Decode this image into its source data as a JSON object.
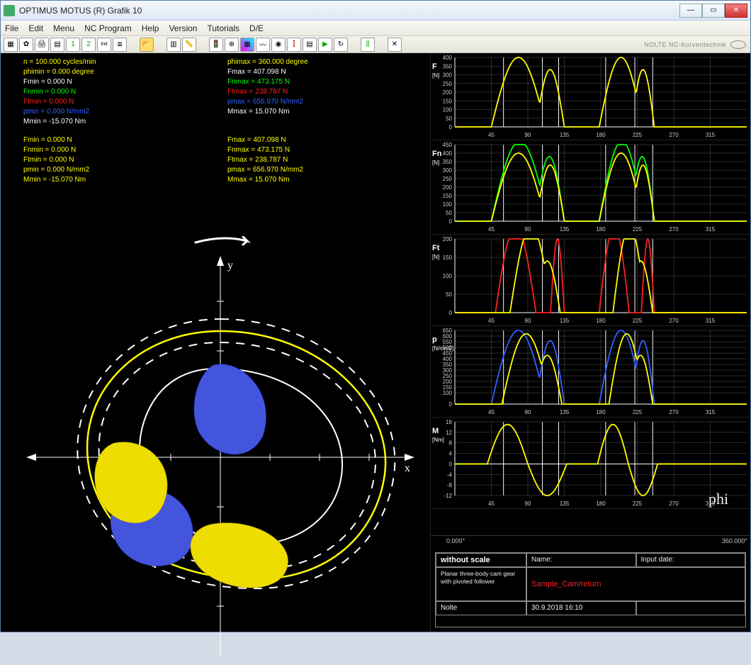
{
  "window": {
    "title": "OPTIMUS MOTUS (R) Grafik 10"
  },
  "menu": [
    "File",
    "Edit",
    "Menu",
    "NC Program",
    "Help",
    "Version",
    "Tutorials",
    "D/E"
  ],
  "brand": "NOLTE NC-Kurventechnik",
  "params_left": [
    {
      "text": "n = 100.000 cycles/min",
      "color": "c-yellow"
    },
    {
      "text": "phimin = 0.000 degree",
      "color": "c-yellow"
    },
    {
      "text": "Fmin = 0.000 N",
      "color": "c-white"
    },
    {
      "text": "Fnmin = 0.000 N",
      "color": "c-green"
    },
    {
      "text": "Ftmin = 0.000 N",
      "color": "c-red"
    },
    {
      "text": "pmin = 0.000 N/mm2",
      "color": "c-blue"
    },
    {
      "text": "Mmin = -15.070 Nm",
      "color": "c-white"
    }
  ],
  "params_left2": [
    {
      "text": "Fmin = 0.000 N",
      "color": "c-yellow"
    },
    {
      "text": "Fnmin = 0.000 N",
      "color": "c-yellow"
    },
    {
      "text": "Ftmin = 0.000 N",
      "color": "c-yellow"
    },
    {
      "text": "pmin = 0.000 N/mm2",
      "color": "c-yellow"
    },
    {
      "text": "Mmin = -15.070 Nm",
      "color": "c-yellow"
    }
  ],
  "params_right": [
    {
      "text": "",
      "color": "c-white"
    },
    {
      "text": "phimax = 360.000 degree",
      "color": "c-yellow"
    },
    {
      "text": "Fmax = 407.098 N",
      "color": "c-white"
    },
    {
      "text": "Fnmax = 473.175 N",
      "color": "c-green"
    },
    {
      "text": "Ftmax = 238.787 N",
      "color": "c-red"
    },
    {
      "text": "pmax = 656.970 N/mm2",
      "color": "c-blue"
    },
    {
      "text": "Mmax = 15.070 Nm",
      "color": "c-white"
    }
  ],
  "params_right2": [
    {
      "text": "Fmax = 407.098 N",
      "color": "c-yellow"
    },
    {
      "text": "Fnmax = 473.175 N",
      "color": "c-yellow"
    },
    {
      "text": "Ftmax = 238.787 N",
      "color": "c-yellow"
    },
    {
      "text": "pmax = 656.970 N/mm2",
      "color": "c-yellow"
    },
    {
      "text": "Mmax = 15.070 Nm",
      "color": "c-yellow"
    }
  ],
  "charts": {
    "x_ticks": [
      45,
      90,
      135,
      180,
      225,
      270,
      315
    ],
    "xlim": [
      0,
      360
    ],
    "series": [
      {
        "label": "F",
        "unit": "[N]",
        "ylim": [
          0,
          400
        ],
        "yticks": [
          0,
          50,
          100,
          150,
          200,
          250,
          300,
          350,
          400
        ],
        "height": 122,
        "traces": [
          {
            "color": "#ffff00",
            "profile": "F"
          }
        ]
      },
      {
        "label": "Fn",
        "unit": "[N]",
        "ylim": [
          0,
          450
        ],
        "yticks": [
          0,
          50,
          100,
          150,
          200,
          250,
          300,
          350,
          400,
          450
        ],
        "height": 132,
        "traces": [
          {
            "color": "#00ff00",
            "profile": "Fn"
          },
          {
            "color": "#ffff00",
            "profile": "F"
          }
        ]
      },
      {
        "label": "Ft",
        "unit": "[N]",
        "ylim": [
          0,
          200
        ],
        "yticks": [
          0,
          50,
          100,
          150,
          200
        ],
        "height": 128,
        "traces": [
          {
            "color": "#ff2020",
            "profile": "Ft"
          },
          {
            "color": "#ffff00",
            "profile": "Fty"
          }
        ]
      },
      {
        "label": "p",
        "unit": "[N/mm2]",
        "ylim": [
          0,
          650
        ],
        "yticks": [
          0,
          100,
          150,
          200,
          250,
          300,
          350,
          400,
          450,
          500,
          550,
          600,
          650
        ],
        "height": 128,
        "traces": [
          {
            "color": "#3060ff",
            "profile": "p"
          },
          {
            "color": "#ffff00",
            "profile": "py"
          }
        ]
      },
      {
        "label": "M",
        "unit": "[Nm]",
        "ylim": [
          -12,
          16
        ],
        "yticks": [
          -12,
          -8,
          -4,
          0,
          4,
          8,
          12,
          16
        ],
        "height": 128,
        "traces": [
          {
            "color": "#ffff00",
            "profile": "M"
          }
        ]
      }
    ],
    "phi_label": "phi",
    "phi_min": "0.000°",
    "phi_max": "360.000°"
  },
  "info": {
    "without_scale": "without scale",
    "desc": "Planar three-body cam gear with pivoted follower",
    "name_lbl": "Name:",
    "inputdate_lbl": "Input date:",
    "sample": "Sample_Cam/return",
    "author": "Nolte",
    "date": "30.9.2018 16:10"
  },
  "colors": {
    "bg": "#000000",
    "yellow": "#ffff00",
    "green": "#00ff00",
    "red": "#ff2020",
    "blue": "#3060ff",
    "white": "#ffffff",
    "grid": "#555555"
  }
}
